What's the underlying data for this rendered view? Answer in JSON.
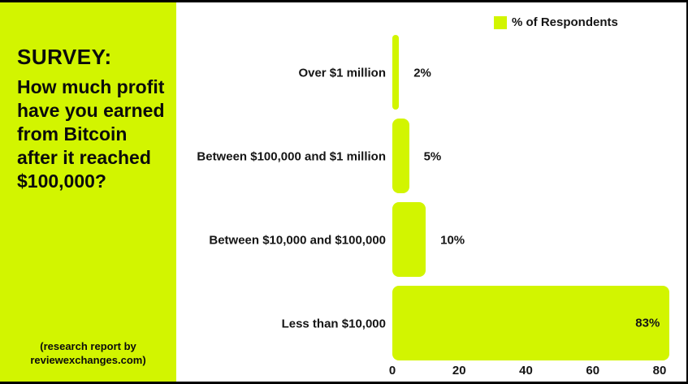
{
  "panel": {
    "heading": "SURVEY:",
    "question": "How much profit have you earned from Bitcoin after it reached $100,000?",
    "caption_line1": "(research report by",
    "caption_line2": "reviewexchanges.com)",
    "bg_color": "#D2F500",
    "text_color": "#0B0B0B"
  },
  "legend": {
    "label": "% of Respondents",
    "swatch_color": "#D2F500",
    "position": "top-right"
  },
  "chart_data": {
    "type": "bar",
    "orientation": "horizontal",
    "title": "",
    "xlabel": "",
    "ylabel": "",
    "categories": [
      "Over $1 million",
      "Between $100,000 and $1 million",
      "Between $10,000 and $100,000",
      "Less than $10,000"
    ],
    "series": [
      {
        "name": "% of Respondents",
        "values": [
          2,
          5,
          10,
          83
        ],
        "value_labels": [
          "2%",
          "5%",
          "10%",
          "83%"
        ],
        "label_inside": [
          false,
          false,
          false,
          true
        ]
      }
    ],
    "xlim": [
      0,
      85
    ],
    "xticks": [
      0,
      20,
      40,
      60,
      80
    ],
    "bar_color": "#D2F500",
    "grid": false,
    "legend_position": "top-right"
  }
}
